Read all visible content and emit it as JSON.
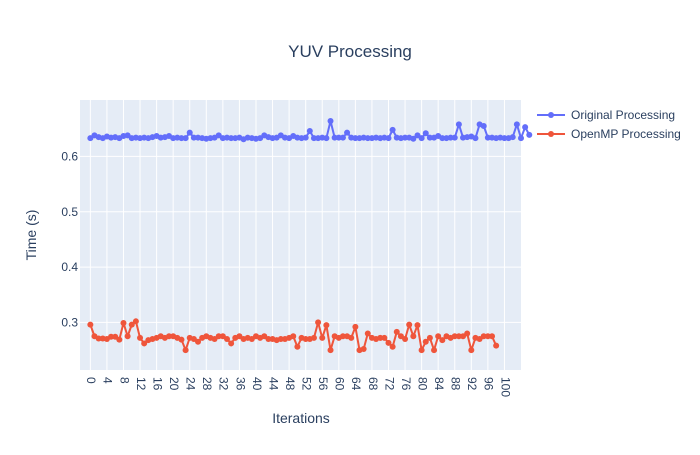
{
  "chart_data": {
    "type": "line",
    "title": "YUV Processing",
    "xlabel": "Iterations",
    "ylabel": "Time (s)",
    "xlim": [
      -2.5,
      104
    ],
    "ylim": [
      0.214,
      0.702
    ],
    "x_ticks": [
      0,
      4,
      8,
      12,
      16,
      20,
      24,
      28,
      32,
      36,
      40,
      44,
      48,
      52,
      56,
      60,
      64,
      68,
      72,
      76,
      80,
      84,
      88,
      92,
      96,
      100
    ],
    "y_ticks": [
      0.3,
      0.4,
      0.5,
      0.6
    ],
    "grid": true,
    "legend_position": "top-right",
    "series": [
      {
        "name": "Original Processing",
        "color": "#636efa",
        "values": [
          0.633,
          0.638,
          0.635,
          0.633,
          0.636,
          0.634,
          0.635,
          0.633,
          0.637,
          0.638,
          0.633,
          0.634,
          0.633,
          0.634,
          0.633,
          0.635,
          0.637,
          0.634,
          0.635,
          0.637,
          0.633,
          0.634,
          0.633,
          0.633,
          0.643,
          0.634,
          0.634,
          0.633,
          0.632,
          0.633,
          0.634,
          0.638,
          0.633,
          0.634,
          0.633,
          0.633,
          0.634,
          0.631,
          0.634,
          0.633,
          0.632,
          0.633,
          0.638,
          0.635,
          0.633,
          0.634,
          0.638,
          0.634,
          0.633,
          0.637,
          0.634,
          0.633,
          0.634,
          0.646,
          0.633,
          0.633,
          0.634,
          0.633,
          0.664,
          0.634,
          0.634,
          0.634,
          0.643,
          0.634,
          0.633,
          0.633,
          0.634,
          0.633,
          0.633,
          0.634,
          0.633,
          0.634,
          0.633,
          0.648,
          0.634,
          0.633,
          0.634,
          0.634,
          0.632,
          0.638,
          0.633,
          0.642,
          0.634,
          0.634,
          0.637,
          0.633,
          0.633,
          0.634,
          0.634,
          0.658,
          0.634,
          0.635,
          0.636,
          0.633,
          0.658,
          0.655,
          0.634,
          0.634,
          0.633,
          0.634,
          0.633,
          0.633,
          0.635,
          0.658,
          0.633,
          0.653,
          0.639
        ]
      },
      {
        "name": "OpenMP Processing",
        "color": "#ef553b",
        "values": [
          0.296,
          0.275,
          0.271,
          0.271,
          0.27,
          0.274,
          0.274,
          0.269,
          0.299,
          0.275,
          0.296,
          0.302,
          0.272,
          0.262,
          0.268,
          0.27,
          0.272,
          0.275,
          0.272,
          0.275,
          0.275,
          0.272,
          0.269,
          0.25,
          0.272,
          0.27,
          0.265,
          0.272,
          0.275,
          0.272,
          0.27,
          0.275,
          0.275,
          0.27,
          0.262,
          0.272,
          0.275,
          0.27,
          0.272,
          0.27,
          0.275,
          0.272,
          0.275,
          0.27,
          0.27,
          0.268,
          0.27,
          0.27,
          0.272,
          0.275,
          0.256,
          0.272,
          0.27,
          0.27,
          0.272,
          0.3,
          0.272,
          0.295,
          0.25,
          0.275,
          0.272,
          0.275,
          0.275,
          0.272,
          0.292,
          0.25,
          0.252,
          0.28,
          0.272,
          0.27,
          0.272,
          0.272,
          0.263,
          0.256,
          0.283,
          0.275,
          0.27,
          0.296,
          0.275,
          0.295,
          0.25,
          0.265,
          0.272,
          0.25,
          0.275,
          0.268,
          0.275,
          0.272,
          0.275,
          0.275,
          0.275,
          0.28,
          0.25,
          0.272,
          0.27,
          0.275,
          0.275,
          0.275,
          0.258
        ]
      }
    ]
  }
}
